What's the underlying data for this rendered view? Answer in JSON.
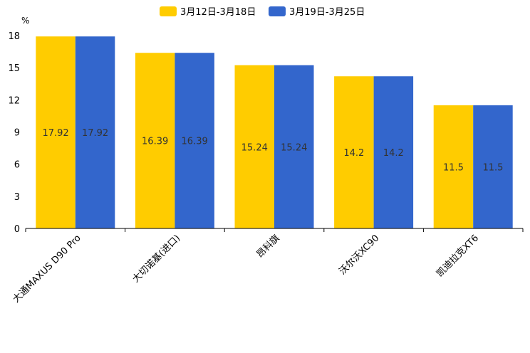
{
  "chart_data": {
    "type": "bar",
    "title": "",
    "xlabel": "",
    "ylabel": "%",
    "ylim": [
      0,
      18
    ],
    "yticks": [
      0,
      3,
      6,
      9,
      12,
      15,
      18
    ],
    "grid": false,
    "legend_position": "top-center",
    "categories": [
      "大通MAXUS D90 Pro",
      "大切诺基(进口)",
      "昂科旗",
      "沃尔沃XC90",
      "凯迪拉克XT6"
    ],
    "series": [
      {
        "name": "3月12日-3月18日",
        "color": "#ffcc00",
        "values": [
          17.92,
          16.39,
          15.24,
          14.2,
          11.5
        ]
      },
      {
        "name": "3月19日-3月25日",
        "color": "#3366cc",
        "values": [
          17.92,
          16.39,
          15.24,
          14.2,
          11.5
        ]
      }
    ]
  }
}
